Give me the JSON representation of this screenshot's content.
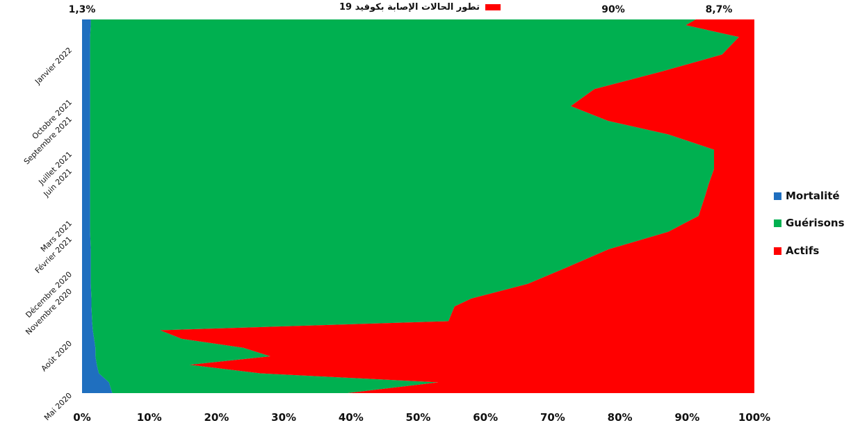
{
  "chart_data": {
    "type": "area",
    "orientation": "horizontal-stacked-100",
    "title": "تطور الحالات الإصابة بكوفيد 19",
    "annotations": [
      {
        "text": "1,3%",
        "refers_to": "Mortalité",
        "at": "top"
      },
      {
        "text": "90%",
        "refers_to": "Guérisons",
        "at": "top"
      },
      {
        "text": "8,7%",
        "refers_to": "Actifs",
        "at": "top"
      }
    ],
    "xlim": [
      0,
      100
    ],
    "xticks": [
      "0%",
      "10%",
      "20%",
      "30%",
      "40%",
      "50%",
      "60%",
      "70%",
      "80%",
      "90%",
      "100%"
    ],
    "time_axis": {
      "start": "2020-05",
      "end": "2022-01",
      "tick_labels": [
        {
          "label": "Mai 2020",
          "date": "2020-05"
        },
        {
          "label": "Août 2020",
          "date": "2020-08"
        },
        {
          "label": "Novembre 2020",
          "date": "2020-11"
        },
        {
          "label": "Décembre 2020",
          "date": "2020-12"
        },
        {
          "label": "Février 2021",
          "date": "2021-02"
        },
        {
          "label": "Mars 2021",
          "date": "2021-03"
        },
        {
          "label": "Juin 2021",
          "date": "2021-06"
        },
        {
          "label": "Juillet 2021",
          "date": "2021-07"
        },
        {
          "label": "Septembre 2021",
          "date": "2021-09"
        },
        {
          "label": "Octobre 2021",
          "date": "2021-10"
        },
        {
          "label": "Janvier 2022",
          "date": "2022-01"
        }
      ]
    },
    "legend": {
      "placement": "right"
    },
    "series": [
      {
        "name": "Mortalité",
        "color": "#1f6fbf"
      },
      {
        "name": "Guérisons",
        "color": "#00b050"
      },
      {
        "name": "Actifs",
        "color": "#ff0000"
      }
    ],
    "points": [
      {
        "date": "2020-05-01",
        "mortalite": 4.5,
        "guerisons": 35,
        "actifs": 60.5
      },
      {
        "date": "2020-05-20",
        "mortalite": 4.0,
        "guerisons": 49,
        "actifs": 47
      },
      {
        "date": "2020-06-05",
        "mortalite": 2.5,
        "guerisons": 24,
        "actifs": 73.5
      },
      {
        "date": "2020-06-20",
        "mortalite": 2.2,
        "guerisons": 13.8,
        "actifs": 84
      },
      {
        "date": "2020-07-05",
        "mortalite": 2.0,
        "guerisons": 26,
        "actifs": 72
      },
      {
        "date": "2020-07-20",
        "mortalite": 2.0,
        "guerisons": 22,
        "actifs": 76
      },
      {
        "date": "2020-08-05",
        "mortalite": 1.8,
        "guerisons": 13,
        "actifs": 85.2
      },
      {
        "date": "2020-08-20",
        "mortalite": 1.6,
        "guerisons": 10,
        "actifs": 88.4
      },
      {
        "date": "2020-09-05",
        "mortalite": 1.5,
        "guerisons": 53,
        "actifs": 45.5
      },
      {
        "date": "2020-10-01",
        "mortalite": 1.4,
        "guerisons": 54,
        "actifs": 44.6
      },
      {
        "date": "2020-10-15",
        "mortalite": 1.4,
        "guerisons": 56.5,
        "actifs": 42.1
      },
      {
        "date": "2020-11-10",
        "mortalite": 1.3,
        "guerisons": 65,
        "actifs": 33.7
      },
      {
        "date": "2020-12-10",
        "mortalite": 1.3,
        "guerisons": 71,
        "actifs": 27.7
      },
      {
        "date": "2021-01-10",
        "mortalite": 1.3,
        "guerisons": 77,
        "actifs": 21.7
      },
      {
        "date": "2021-02-10",
        "mortalite": 1.2,
        "guerisons": 86,
        "actifs": 12.8
      },
      {
        "date": "2021-03-10",
        "mortalite": 1.2,
        "guerisons": 90.5,
        "actifs": 8.3
      },
      {
        "date": "2021-04-15",
        "mortalite": 1.2,
        "guerisons": 91.5,
        "actifs": 7.3
      },
      {
        "date": "2021-05-05",
        "mortalite": 1.2,
        "guerisons": 92,
        "actifs": 6.8
      },
      {
        "date": "2021-06-01",
        "mortalite": 1.2,
        "guerisons": 92.8,
        "actifs": 6.0
      },
      {
        "date": "2021-07-05",
        "mortalite": 1.2,
        "guerisons": 92.8,
        "actifs": 6.0
      },
      {
        "date": "2021-08-01",
        "mortalite": 1.2,
        "guerisons": 86,
        "actifs": 12.8
      },
      {
        "date": "2021-08-25",
        "mortalite": 1.2,
        "guerisons": 77,
        "actifs": 21.8
      },
      {
        "date": "2021-09-20",
        "mortalite": 1.2,
        "guerisons": 71.5,
        "actifs": 27.3
      },
      {
        "date": "2021-10-20",
        "mortalite": 1.2,
        "guerisons": 75,
        "actifs": 23.8
      },
      {
        "date": "2021-11-20",
        "mortalite": 1.2,
        "guerisons": 85,
        "actifs": 13.8
      },
      {
        "date": "2021-12-20",
        "mortalite": 1.2,
        "guerisons": 94,
        "actifs": 4.8
      },
      {
        "date": "2022-01-20",
        "mortalite": 1.2,
        "guerisons": 96.5,
        "actifs": 2.3
      },
      {
        "date": "2022-02-10",
        "mortalite": 1.3,
        "guerisons": 88.5,
        "actifs": 10.2
      },
      {
        "date": "2022-02-20",
        "mortalite": 1.3,
        "guerisons": 90,
        "actifs": 8.7
      }
    ]
  }
}
